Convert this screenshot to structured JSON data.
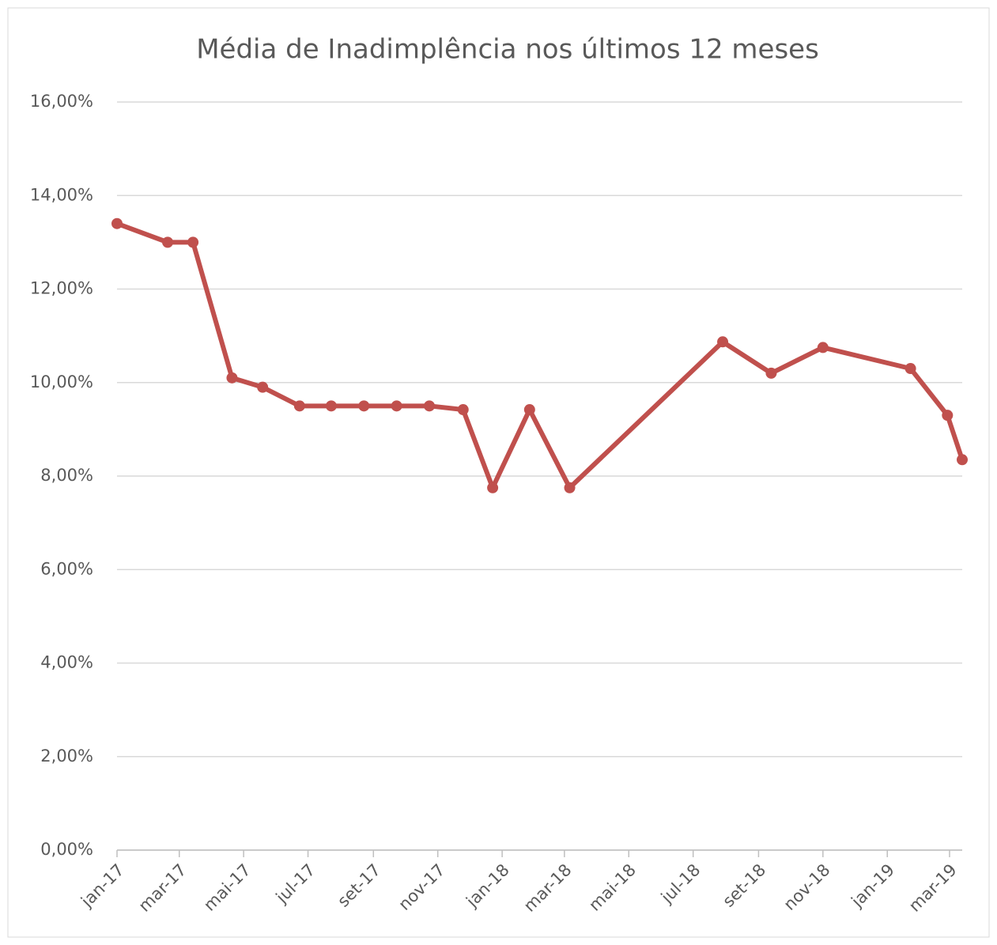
{
  "chart_data": {
    "type": "line",
    "title": "Média de Inadimplência nos últimos 12 meses",
    "x": [
      "2017-01-01",
      "2017-02-18",
      "2017-03-14",
      "2017-04-20",
      "2017-05-19",
      "2017-06-23",
      "2017-07-23",
      "2017-08-23",
      "2017-09-23",
      "2017-10-24",
      "2017-11-25",
      "2017-12-23",
      "2018-01-27",
      "2018-03-06",
      "2018-07-29",
      "2018-09-13",
      "2018-11-01",
      "2019-01-23",
      "2019-02-27",
      "2019-03-13"
    ],
    "series": [
      {
        "name": "Média de Inadimplência",
        "color": "#c0504d",
        "values": [
          13.4,
          13.0,
          13.0,
          10.1,
          9.9,
          9.5,
          9.5,
          9.5,
          9.5,
          9.5,
          9.42,
          7.75,
          9.42,
          7.75,
          10.87,
          10.2,
          10.75,
          10.3,
          9.3,
          8.35
        ]
      }
    ],
    "xlim": [
      "2017-01-01",
      "2019-03-13"
    ],
    "xticks": [
      {
        "value": "2017-01-01",
        "label": "jan-17"
      },
      {
        "value": "2017-03-01",
        "label": "mar-17"
      },
      {
        "value": "2017-05-01",
        "label": "mai-17"
      },
      {
        "value": "2017-07-01",
        "label": "jul-17"
      },
      {
        "value": "2017-09-01",
        "label": "set-17"
      },
      {
        "value": "2017-11-01",
        "label": "nov-17"
      },
      {
        "value": "2018-01-01",
        "label": "jan-18"
      },
      {
        "value": "2018-03-01",
        "label": "mar-18"
      },
      {
        "value": "2018-05-01",
        "label": "mai-18"
      },
      {
        "value": "2018-07-01",
        "label": "jul-18"
      },
      {
        "value": "2018-09-01",
        "label": "set-18"
      },
      {
        "value": "2018-11-01",
        "label": "nov-18"
      },
      {
        "value": "2019-01-01",
        "label": "jan-19"
      },
      {
        "value": "2019-03-01",
        "label": "mar-19"
      }
    ],
    "ylim": [
      0,
      16
    ],
    "yticks": [
      {
        "value": 0,
        "label": "0,00%"
      },
      {
        "value": 2,
        "label": "2,00%"
      },
      {
        "value": 4,
        "label": "4,00%"
      },
      {
        "value": 6,
        "label": "6,00%"
      },
      {
        "value": 8,
        "label": "8,00%"
      },
      {
        "value": 10,
        "label": "10,00%"
      },
      {
        "value": 12,
        "label": "12,00%"
      },
      {
        "value": 14,
        "label": "14,00%"
      },
      {
        "value": 16,
        "label": "16,00%"
      }
    ],
    "grid": true
  }
}
